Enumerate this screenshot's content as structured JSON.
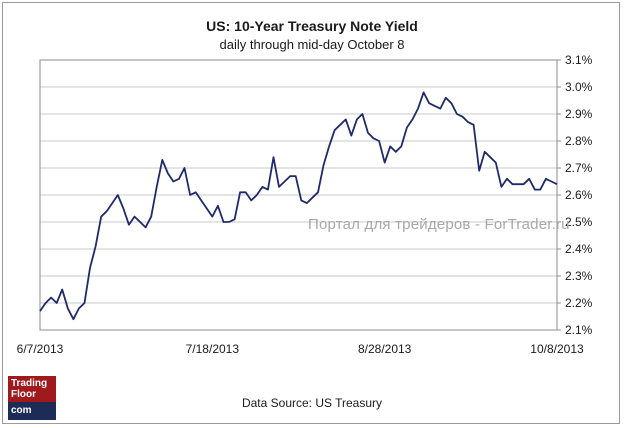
{
  "chart_data": {
    "type": "line",
    "title": "US: 10-Year Treasury Note Yield",
    "subtitle": "daily through mid-day October 8",
    "xlabel": "",
    "ylabel": "",
    "ylim": [
      2.1,
      3.1
    ],
    "yticks": [
      "2.1%",
      "2.2%",
      "2.3%",
      "2.4%",
      "2.5%",
      "2.6%",
      "2.7%",
      "2.8%",
      "2.9%",
      "3.0%",
      "3.1%"
    ],
    "xticks": [
      "6/7/2013",
      "7/18/2013",
      "8/28/2013",
      "10/8/2013"
    ],
    "grid": true,
    "series": [
      {
        "name": "10-Year Treasury Note Yield",
        "color": "#1f2a6b",
        "values": [
          2.17,
          2.2,
          2.22,
          2.2,
          2.25,
          2.18,
          2.14,
          2.18,
          2.2,
          2.33,
          2.41,
          2.52,
          2.54,
          2.57,
          2.6,
          2.55,
          2.49,
          2.52,
          2.5,
          2.48,
          2.52,
          2.63,
          2.73,
          2.68,
          2.65,
          2.66,
          2.7,
          2.6,
          2.61,
          2.58,
          2.55,
          2.52,
          2.56,
          2.5,
          2.5,
          2.51,
          2.61,
          2.61,
          2.58,
          2.6,
          2.63,
          2.62,
          2.74,
          2.63,
          2.65,
          2.67,
          2.67,
          2.58,
          2.57,
          2.59,
          2.61,
          2.71,
          2.78,
          2.84,
          2.86,
          2.88,
          2.82,
          2.88,
          2.9,
          2.83,
          2.81,
          2.8,
          2.72,
          2.78,
          2.76,
          2.78,
          2.85,
          2.88,
          2.92,
          2.98,
          2.94,
          2.93,
          2.92,
          2.96,
          2.94,
          2.9,
          2.89,
          2.87,
          2.86,
          2.69,
          2.76,
          2.74,
          2.72,
          2.63,
          2.66,
          2.64,
          2.64,
          2.64,
          2.66,
          2.62,
          2.62,
          2.66,
          2.65,
          2.64
        ]
      }
    ]
  },
  "watermark": "Портал для трейдеров - ForTrader.ru",
  "source": "Data Source: US Treasury",
  "logo": {
    "line1": "Trading",
    "line2": "Floor",
    "line3": "com"
  }
}
